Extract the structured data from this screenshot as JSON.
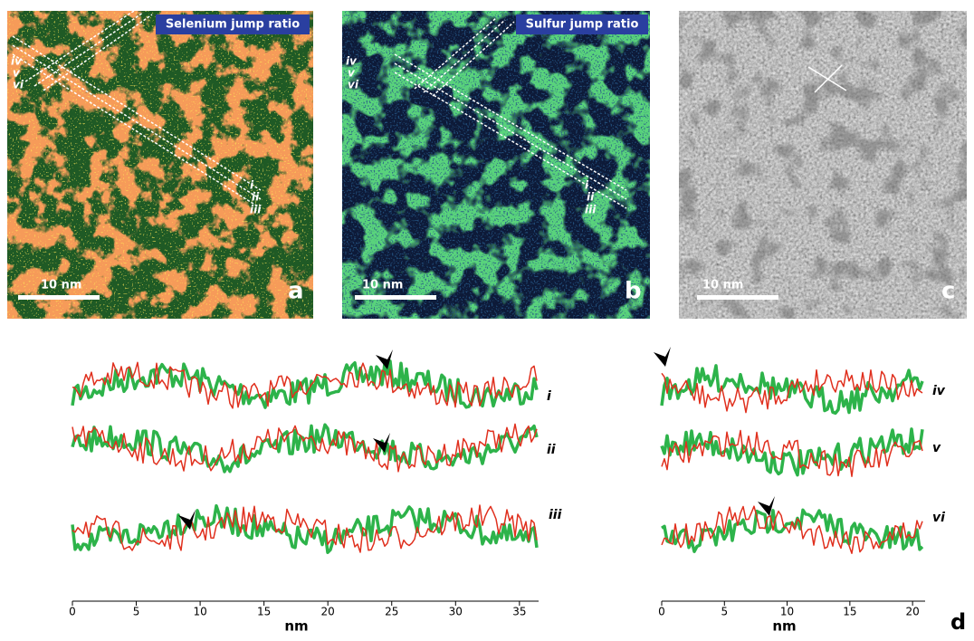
{
  "panels": [
    {
      "letter": "a",
      "banner": "Selenium jump ratio",
      "scale_bar": "10 nm",
      "line_labels": [
        "iv",
        "v",
        "vi",
        "i",
        "ii",
        "iii"
      ]
    },
    {
      "letter": "b",
      "banner": "Sulfur jump ratio",
      "scale_bar": "10 nm",
      "line_labels": [
        "iv",
        "v",
        "vi",
        "i",
        "ii",
        "iii"
      ]
    },
    {
      "letter": "c",
      "scale_bar": "10 nm"
    }
  ],
  "profiles": [
    {
      "xlim": [
        0,
        36.5
      ],
      "xticks": [
        0,
        5,
        10,
        15,
        20,
        25,
        30,
        35
      ],
      "xlabel": "nm",
      "labels": [
        "i",
        "ii",
        "iii"
      ]
    },
    {
      "xlim": [
        0,
        21
      ],
      "xticks": [
        0,
        5,
        10,
        15,
        20
      ],
      "xlabel": "nm",
      "labels": [
        "iv",
        "v",
        "vi"
      ]
    }
  ],
  "panel_d": "d"
}
